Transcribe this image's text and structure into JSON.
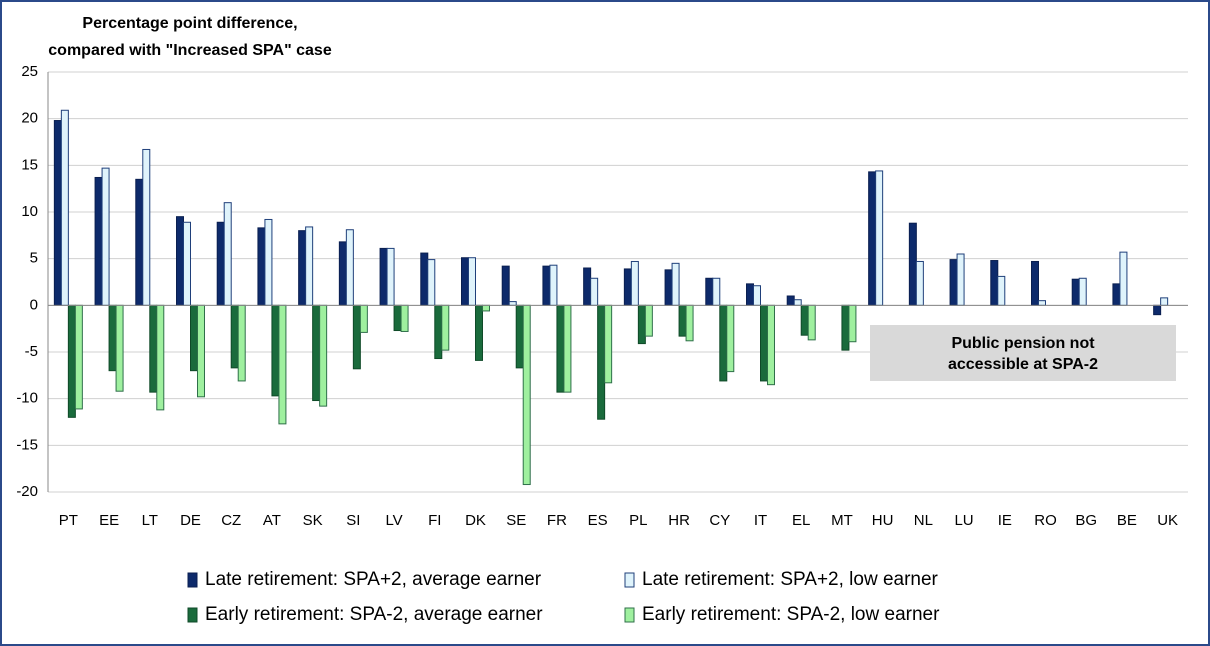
{
  "chart_data": {
    "type": "bar",
    "title": [
      "Percentage point difference,",
      "compared with \"Increased SPA\" case"
    ],
    "annotation": [
      "Public pension not",
      "accessible at SPA-2"
    ],
    "categories": [
      "PT",
      "EE",
      "LT",
      "DE",
      "CZ",
      "AT",
      "SK",
      "SI",
      "LV",
      "FI",
      "DK",
      "SE",
      "FR",
      "ES",
      "PL",
      "HR",
      "CY",
      "IT",
      "EL",
      "MT",
      "HU",
      "NL",
      "LU",
      "IE",
      "RO",
      "BG",
      "BE",
      "UK"
    ],
    "series": [
      {
        "name": "Late retirement: SPA+2, average earner",
        "color": "#0d2a6b",
        "stroke": "#0a1f50",
        "values": [
          19.8,
          13.7,
          13.5,
          9.5,
          8.9,
          8.3,
          8.0,
          6.8,
          6.1,
          5.6,
          5.1,
          4.2,
          4.2,
          4.0,
          3.9,
          3.8,
          2.9,
          2.3,
          1.0,
          null,
          14.3,
          8.8,
          4.9,
          4.8,
          4.7,
          2.8,
          2.3,
          -1.0
        ]
      },
      {
        "name": "Late retirement: SPA+2, low earner",
        "color": "#dff3fb",
        "stroke": "#1f3f7a",
        "values": [
          20.9,
          14.7,
          16.7,
          8.9,
          11.0,
          9.2,
          8.4,
          8.1,
          6.1,
          4.9,
          5.1,
          0.4,
          4.3,
          2.9,
          4.7,
          4.5,
          2.9,
          2.1,
          0.6,
          null,
          14.4,
          4.7,
          5.5,
          3.1,
          0.5,
          2.9,
          5.7,
          0.8
        ]
      },
      {
        "name": "Early retirement: SPA-2, average earner",
        "color": "#1a6b3c",
        "stroke": "#0f4a28",
        "values": [
          -12.0,
          -7.0,
          -9.3,
          -7.0,
          -6.7,
          -9.7,
          -10.2,
          -6.8,
          -2.7,
          -5.7,
          -5.9,
          -6.7,
          -9.3,
          -12.2,
          -4.1,
          -3.3,
          -8.1,
          -8.1,
          -3.2,
          -4.8,
          null,
          null,
          null,
          null,
          null,
          null,
          null,
          null
        ]
      },
      {
        "name": "Early retirement: SPA-2, low earner",
        "color": "#9ff09f",
        "stroke": "#2f6f4a",
        "values": [
          -11.1,
          -9.2,
          -11.2,
          -9.8,
          -8.1,
          -12.7,
          -10.8,
          -2.9,
          -2.8,
          -4.8,
          -0.6,
          -19.2,
          -9.3,
          -8.3,
          -3.3,
          -3.8,
          -7.1,
          -8.5,
          -3.7,
          -3.9,
          null,
          null,
          null,
          null,
          null,
          null,
          null,
          null
        ]
      }
    ],
    "ylim": [
      -20,
      25
    ],
    "yticks": [
      -20,
      -15,
      -10,
      -5,
      0,
      5,
      10,
      15,
      20,
      25
    ],
    "grid": true,
    "legend": "bottom"
  }
}
